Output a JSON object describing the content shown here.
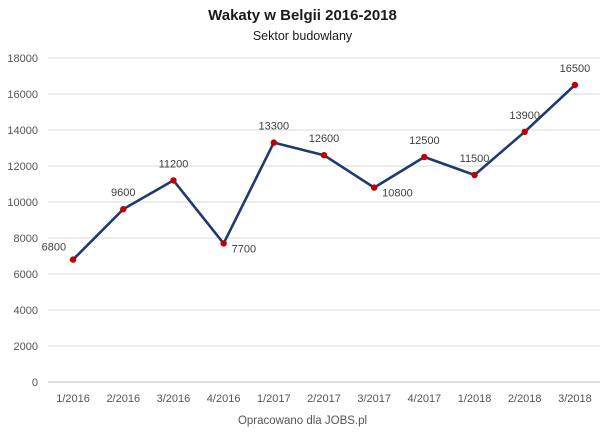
{
  "chart_data": {
    "type": "line",
    "title": "Wakaty w Belgii 2016-2018",
    "subtitle": "Sektor budowlany",
    "xlabel": "",
    "ylabel": "",
    "categories": [
      "1/2016",
      "2/2016",
      "3/2016",
      "4/2016",
      "1/2017",
      "2/2017",
      "3/2017",
      "4/2017",
      "1/2018",
      "2/2018",
      "3/2018"
    ],
    "series": [
      {
        "values": [
          6800,
          9600,
          11200,
          7700,
          13300,
          12600,
          10800,
          12500,
          11500,
          13900,
          16500
        ]
      }
    ],
    "ylim": [
      0,
      18000
    ],
    "yticks": [
      0,
      2000,
      4000,
      6000,
      8000,
      10000,
      12000,
      14000,
      16000,
      18000
    ],
    "grid": "horizontal",
    "line_color": "#1f3a6e",
    "marker_color": "#c00000",
    "gridline_color": "#d9d9d9",
    "data_label_positions": [
      "left",
      "above",
      "above",
      "right",
      "above",
      "above",
      "right",
      "above",
      "above",
      "above",
      "above"
    ],
    "source": "Opracowano dla JOBS.pl"
  }
}
